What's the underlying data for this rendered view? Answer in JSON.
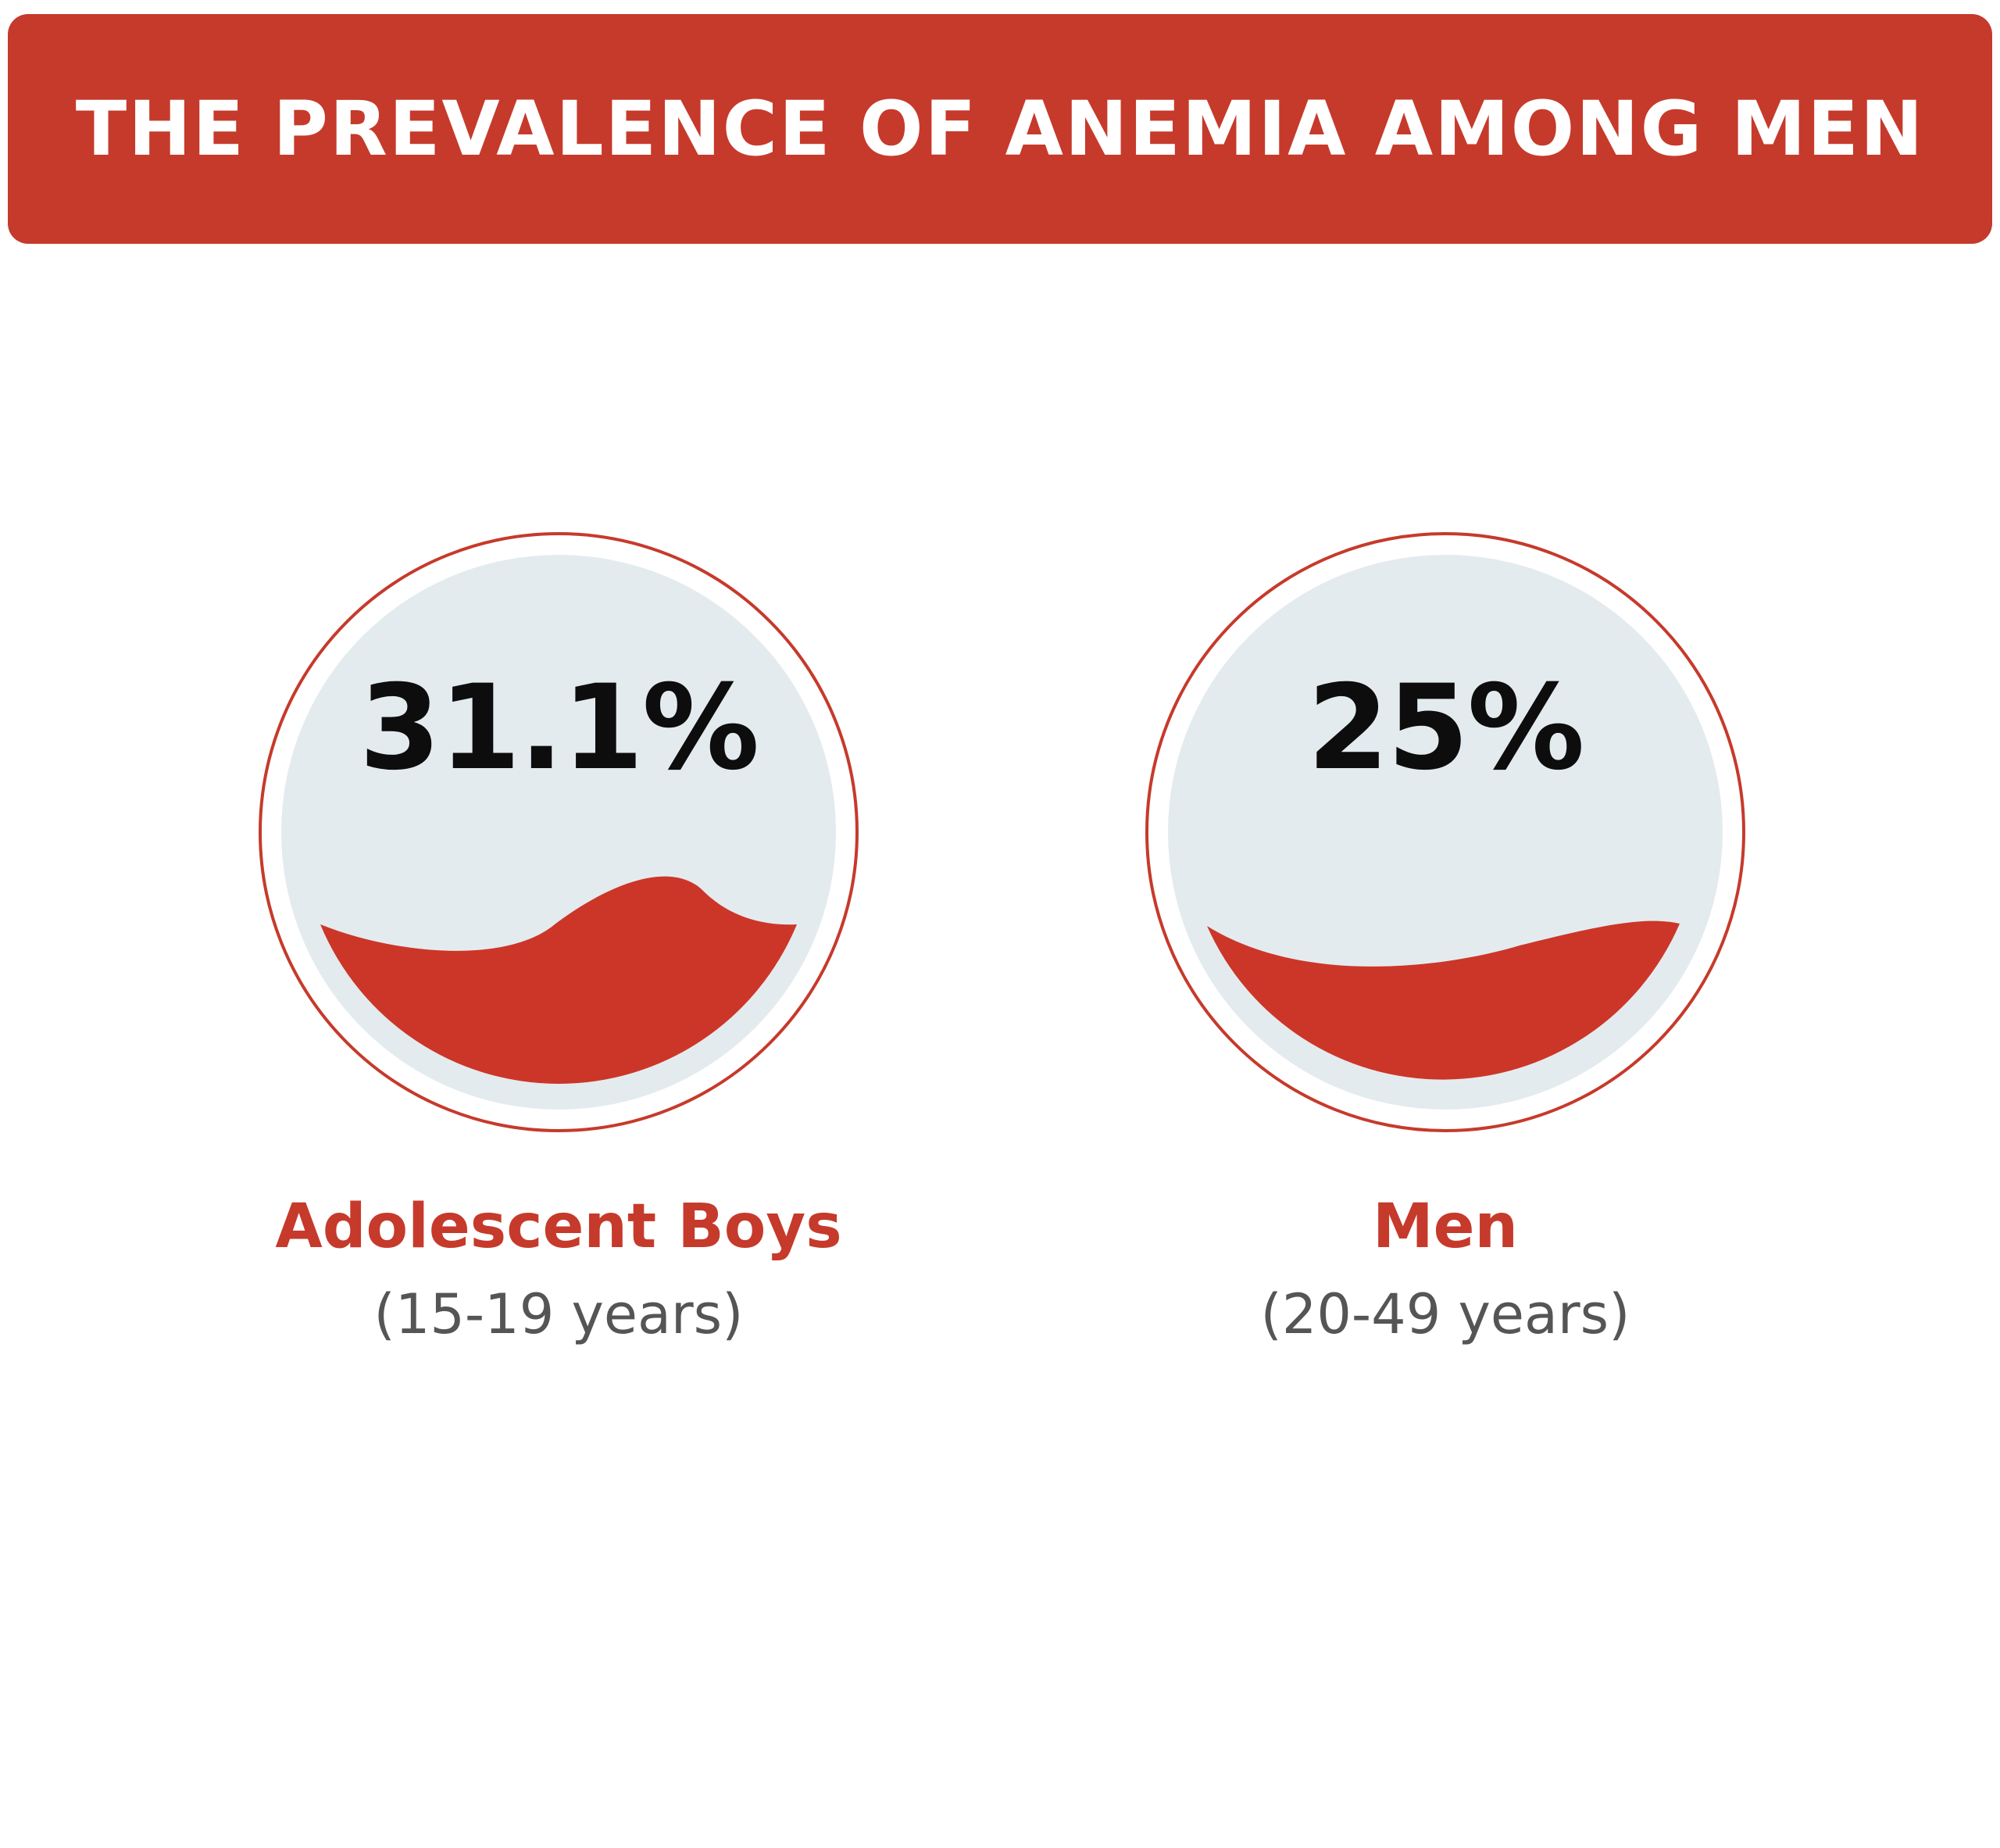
{
  "title": "THE PREVALENCE OF ANEMIA AMONG MEN",
  "colors": {
    "accent": "#c63a2b",
    "fill": "#cc3628",
    "circle_bg": "#e4ebef",
    "ring": "#c63a2b",
    "value_text": "#0d0d0d",
    "range_text": "#555555"
  },
  "chart_data": {
    "type": "gauge",
    "title": "THE PREVALENCE OF ANEMIA AMONG MEN",
    "unit": "%",
    "items": [
      {
        "value": 31.1,
        "value_label": "31.1%",
        "name": "Adolescent Boys",
        "range": "(15-19 years)"
      },
      {
        "value": 25,
        "value_label": "25%",
        "name": "Men",
        "range": "(20-49 years)"
      }
    ]
  }
}
